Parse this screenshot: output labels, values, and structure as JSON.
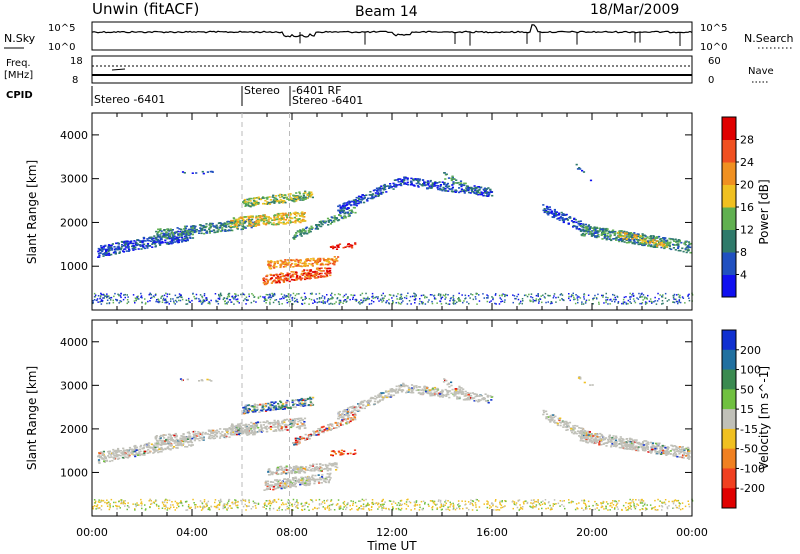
{
  "header": {
    "station": "Unwin (fitACF)",
    "beam": "Beam 14",
    "date": "18/Mar/2009"
  },
  "noise_panel": {
    "left_label": "N.Sky",
    "right_label": "N.Search",
    "left_ticks": [
      "10^5",
      "10^0"
    ],
    "right_ticks": [
      "10^5",
      "10^0"
    ]
  },
  "freq_panel": {
    "left_label_1": "Freq.",
    "left_label_2": "[MHz]",
    "left_ticks": [
      "18",
      "8"
    ],
    "right_label": "Nave",
    "right_ticks": [
      "60",
      "0"
    ]
  },
  "cpid": {
    "label": "CPID",
    "segments": [
      {
        "start_hour": 0.0,
        "text": "Stereo -6401"
      },
      {
        "start_hour": 6.0,
        "text": "Stereo"
      },
      {
        "start_hour": 7.9,
        "text": "-6401 RF"
      },
      {
        "start_hour": 7.9,
        "text": "Stereo -6401"
      }
    ]
  },
  "chart_data": [
    {
      "type": "heatmap",
      "name": "power",
      "ylabel": "Slant Range [km]",
      "yticks": [
        "1000",
        "2000",
        "3000",
        "4000"
      ],
      "ylim": [
        0,
        4500
      ],
      "colorbar_label": "Power [dB]",
      "colorbar_ticks": [
        "4",
        "8",
        "12",
        "16",
        "20",
        "24",
        "28"
      ],
      "colorbar_colors": [
        "#1010f0",
        "#2050c0",
        "#2f7a6a",
        "#60b050",
        "#f0c020",
        "#f09020",
        "#f05020",
        "#e00000"
      ]
    },
    {
      "type": "heatmap",
      "name": "velocity",
      "ylabel": "Slant Range [km]",
      "yticks": [
        "1000",
        "2000",
        "3000",
        "4000"
      ],
      "ylim": [
        0,
        4500
      ],
      "colorbar_label": "Velocity [m s^-1]",
      "colorbar_ticks": [
        "200",
        "100",
        "50",
        "15",
        "-15",
        "-50",
        "-100",
        "-200"
      ],
      "colorbar_colors": [
        "#1030d0",
        "#2070a0",
        "#3a8a50",
        "#70c040",
        "#c0c0b8",
        "#f0c020",
        "#f08020",
        "#f04020",
        "#e00000"
      ]
    }
  ],
  "x_axis": {
    "label": "Time UT",
    "ticks": [
      "00:00",
      "04:00",
      "08:00",
      "12:00",
      "16:00",
      "20:00",
      "00:00"
    ],
    "range_hours": [
      0,
      24
    ]
  }
}
